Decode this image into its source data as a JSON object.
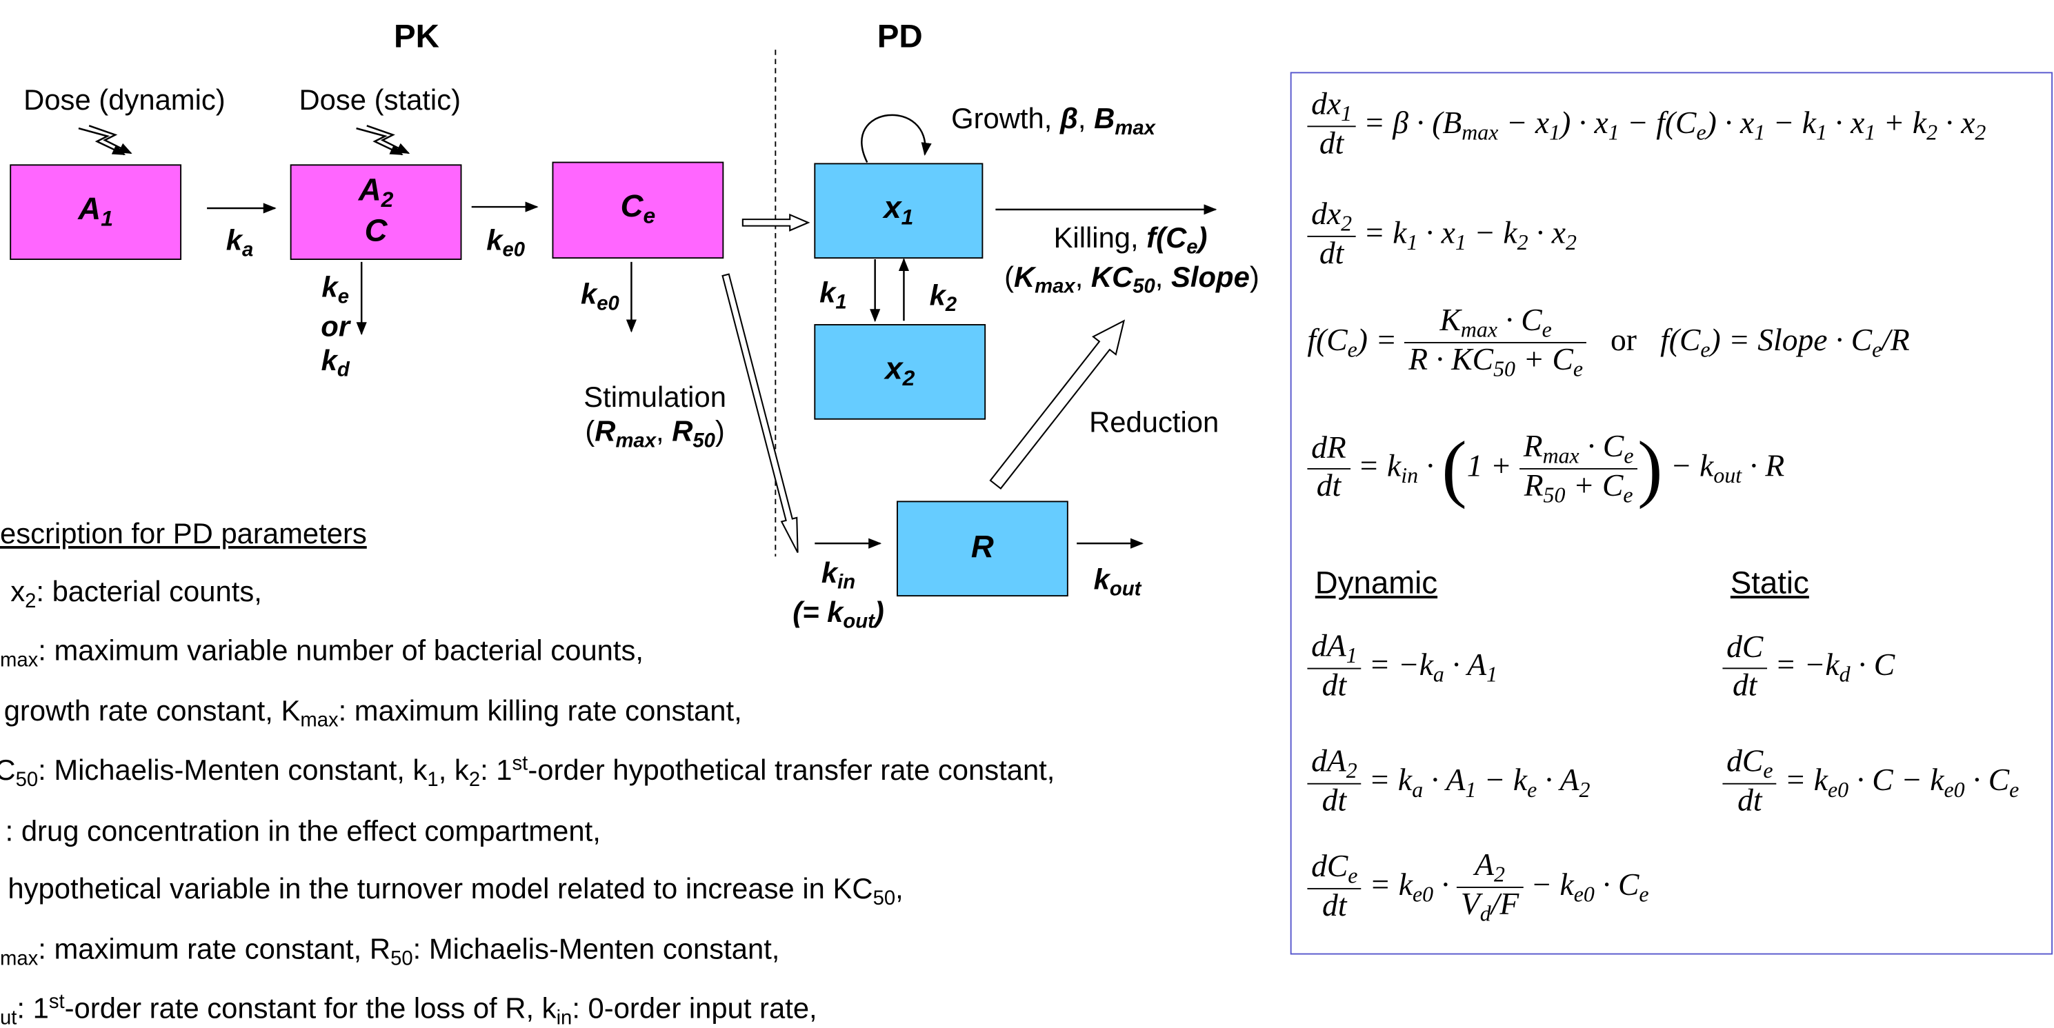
{
  "headers": {
    "pk": "PK",
    "pd": "PD"
  },
  "doses": [
    "Dose (dynamic)",
    "Dose (static)"
  ],
  "nodes": [
    {
      "lines": [
        [
          {
            "em": "A"
          },
          {
            "emsub": "1"
          }
        ]
      ]
    },
    {
      "lines": [
        [
          {
            "em": "A"
          },
          {
            "emsub": "2"
          }
        ],
        [
          {
            "em": "C"
          }
        ]
      ]
    },
    {
      "lines": [
        [
          {
            "em": "C"
          },
          {
            "emsub": "e"
          }
        ]
      ]
    },
    {
      "lines": [
        [
          {
            "em": "x"
          },
          {
            "emsub": "1"
          }
        ]
      ]
    },
    {
      "lines": [
        [
          {
            "em": "x"
          },
          {
            "emsub": "2"
          }
        ]
      ]
    },
    {
      "lines": [
        [
          {
            "em": "R"
          }
        ]
      ]
    }
  ],
  "labels": [
    {
      "lines": [
        [
          {
            "em": "k"
          },
          {
            "emsub": "a"
          }
        ]
      ]
    },
    {
      "lines": [
        [
          {
            "em": "k"
          },
          {
            "emsub": "e0"
          }
        ]
      ]
    },
    {
      "lines": [
        [
          {
            "em": "k"
          },
          {
            "emsub": "e"
          }
        ],
        [
          {
            "em": "or"
          }
        ],
        [
          {
            "em": "k"
          },
          {
            "emsub": "d"
          }
        ]
      ]
    },
    {
      "lines": [
        [
          {
            "em": "k"
          },
          {
            "emsub": "e0"
          }
        ]
      ]
    },
    {
      "lines": [
        [
          {
            "em": "k"
          },
          {
            "emsub": "1"
          }
        ]
      ]
    },
    {
      "lines": [
        [
          {
            "em": "k"
          },
          {
            "emsub": "2"
          }
        ]
      ]
    },
    {
      "lines": [
        [
          {
            "em": "k"
          },
          {
            "emsub": "in"
          }
        ],
        [
          {
            "em": "(= k"
          },
          {
            "emsub": "out"
          },
          {
            "em": ")"
          }
        ]
      ]
    },
    {
      "lines": [
        [
          {
            "em": "k"
          },
          {
            "emsub": "out"
          }
        ]
      ]
    },
    {
      "lines": [
        [
          {
            "t": "Growth, "
          },
          {
            "em": "β"
          },
          {
            "t": ", "
          },
          {
            "em": "B"
          },
          {
            "emsub": "max"
          }
        ]
      ]
    },
    {
      "lines": [
        [
          {
            "t": "Killing, "
          },
          {
            "em": "f(C"
          },
          {
            "emsub": "e"
          },
          {
            "em": ")"
          }
        ]
      ]
    },
    {
      "lines": [
        [
          {
            "t": "("
          },
          {
            "em": "K"
          },
          {
            "emsub": "max"
          },
          {
            "t": ", "
          },
          {
            "em": "KC"
          },
          {
            "emsub": "50"
          },
          {
            "t": ", "
          },
          {
            "em": "Slope"
          },
          {
            "t": ")"
          }
        ]
      ]
    },
    {
      "lines": [
        [
          {
            "t": "Stimulation"
          }
        ],
        [
          {
            "t": "("
          },
          {
            "em": "R"
          },
          {
            "emsub": "max"
          },
          {
            "t": ", "
          },
          {
            "em": "R"
          },
          {
            "emsub": "50"
          },
          {
            "t": ")"
          }
        ]
      ]
    },
    {
      "lines": [
        [
          {
            "t": "Reduction"
          }
        ]
      ]
    }
  ],
  "description": {
    "heading": "escription for PD parameters",
    "lines": [
      [
        {
          "t": "x"
        },
        {
          "sub": "2"
        },
        {
          "t": ": bacterial counts,"
        }
      ],
      [
        {
          "sub": "max"
        },
        {
          "t": ": maximum variable number of bacterial counts,"
        }
      ],
      [
        {
          "t": "growth rate constant, K"
        },
        {
          "sub": "max"
        },
        {
          "t": ": maximum killing rate constant,"
        }
      ],
      [
        {
          "t": "C"
        },
        {
          "sub": "50"
        },
        {
          "t": ": Michaelis-Menten constant, k"
        },
        {
          "sub": "1"
        },
        {
          "t": ", k"
        },
        {
          "sub": "2"
        },
        {
          "t": ": 1"
        },
        {
          "sup": "st"
        },
        {
          "t": "-order hypothetical transfer rate constant,"
        }
      ],
      [
        {
          "t": ": drug concentration in the effect compartment,"
        }
      ],
      [
        {
          "t": "hypothetical variable in the turnover model related to increase in KC"
        },
        {
          "sub": "50"
        },
        {
          "t": ","
        }
      ],
      [
        {
          "sub": "max"
        },
        {
          "t": ": maximum rate constant, R"
        },
        {
          "sub": "50"
        },
        {
          "t": ": Michaelis-Menten constant,"
        }
      ],
      [
        {
          "sub": "ut"
        },
        {
          "t": ": 1"
        },
        {
          "sup": "st"
        },
        {
          "t": "-order rate constant for the loss of R, k"
        },
        {
          "sub": "in"
        },
        {
          "t": ": 0-order input rate,"
        }
      ]
    ]
  },
  "equations": {
    "dynamic": "Dynamic",
    "static": "Static",
    "lines": [
      [
        {
          "frac": {
            "num": [
              {
                "t": "dx"
              },
              {
                "sub": "1"
              }
            ],
            "den": [
              {
                "t": "dt"
              }
            ]
          }
        },
        {
          "t": " = β · (B"
        },
        {
          "sub": "max"
        },
        {
          "t": " − x"
        },
        {
          "sub": "1"
        },
        {
          "t": ") · x"
        },
        {
          "sub": "1"
        },
        {
          "t": " − f(C"
        },
        {
          "sub": "e"
        },
        {
          "t": ") · x"
        },
        {
          "sub": "1"
        },
        {
          "t": " − k"
        },
        {
          "sub": "1"
        },
        {
          "t": " · x"
        },
        {
          "sub": "1"
        },
        {
          "t": " + k"
        },
        {
          "sub": "2"
        },
        {
          "t": " · x"
        },
        {
          "sub": "2"
        }
      ],
      [
        {
          "frac": {
            "num": [
              {
                "t": "dx"
              },
              {
                "sub": "2"
              }
            ],
            "den": [
              {
                "t": "dt"
              }
            ]
          }
        },
        {
          "t": " = k"
        },
        {
          "sub": "1"
        },
        {
          "t": " · x"
        },
        {
          "sub": "1"
        },
        {
          "t": " − k"
        },
        {
          "sub": "2"
        },
        {
          "t": " · x"
        },
        {
          "sub": "2"
        }
      ],
      [
        {
          "t": "f(C"
        },
        {
          "sub": "e"
        },
        {
          "t": ") = "
        },
        {
          "frac": {
            "num": [
              {
                "t": "K"
              },
              {
                "sub": "max"
              },
              {
                "t": " · C"
              },
              {
                "sub": "e"
              }
            ],
            "den": [
              {
                "t": "R · KC"
              },
              {
                "sub": "50"
              },
              {
                "t": " + C"
              },
              {
                "sub": "e"
              }
            ]
          }
        },
        {
          "r": "   or   "
        },
        {
          "t": "f(C"
        },
        {
          "sub": "e"
        },
        {
          "t": ") = Slope · C"
        },
        {
          "sub": "e"
        },
        {
          "t": "/R"
        }
      ],
      [
        {
          "frac": {
            "num": [
              {
                "t": "dR"
              }
            ],
            "den": [
              {
                "t": "dt"
              }
            ]
          }
        },
        {
          "t": " = k"
        },
        {
          "sub": "in"
        },
        {
          "t": " · "
        },
        {
          "big": "("
        },
        {
          "t": "1 + "
        },
        {
          "frac": {
            "num": [
              {
                "t": "R"
              },
              {
                "sub": "max"
              },
              {
                "t": " · C"
              },
              {
                "sub": "e"
              }
            ],
            "den": [
              {
                "t": "R"
              },
              {
                "sub": "50"
              },
              {
                "t": " + C"
              },
              {
                "sub": "e"
              }
            ]
          }
        },
        {
          "big": ")"
        },
        {
          "t": " − k"
        },
        {
          "sub": "out"
        },
        {
          "t": " · R"
        }
      ],
      [
        {
          "frac": {
            "num": [
              {
                "t": "dA"
              },
              {
                "sub": "1"
              }
            ],
            "den": [
              {
                "t": "dt"
              }
            ]
          }
        },
        {
          "t": " = −k"
        },
        {
          "sub": "a"
        },
        {
          "t": " · A"
        },
        {
          "sub": "1"
        }
      ],
      [
        {
          "frac": {
            "num": [
              {
                "t": "dC"
              }
            ],
            "den": [
              {
                "t": "dt"
              }
            ]
          }
        },
        {
          "t": " = −k"
        },
        {
          "sub": "d"
        },
        {
          "t": " · C"
        }
      ],
      [
        {
          "frac": {
            "num": [
              {
                "t": "dA"
              },
              {
                "sub": "2"
              }
            ],
            "den": [
              {
                "t": "dt"
              }
            ]
          }
        },
        {
          "t": " = k"
        },
        {
          "sub": "a"
        },
        {
          "t": " · A"
        },
        {
          "sub": "1"
        },
        {
          "t": " − k"
        },
        {
          "sub": "e"
        },
        {
          "t": " · A"
        },
        {
          "sub": "2"
        }
      ],
      [
        {
          "frac": {
            "num": [
              {
                "t": "dC"
              },
              {
                "sub": "e"
              }
            ],
            "den": [
              {
                "t": "dt"
              }
            ]
          }
        },
        {
          "t": " = k"
        },
        {
          "sub": "e0"
        },
        {
          "t": " · C − k"
        },
        {
          "sub": "e0"
        },
        {
          "t": " · C"
        },
        {
          "sub": "e"
        }
      ],
      [
        {
          "frac": {
            "num": [
              {
                "t": "dC"
              },
              {
                "sub": "e"
              }
            ],
            "den": [
              {
                "t": "dt"
              }
            ]
          }
        },
        {
          "t": " = k"
        },
        {
          "sub": "e0"
        },
        {
          "t": " · "
        },
        {
          "frac": {
            "num": [
              {
                "t": "A"
              },
              {
                "sub": "2"
              }
            ],
            "den": [
              {
                "t": "V"
              },
              {
                "sub": "d"
              },
              {
                "t": "/F"
              }
            ]
          }
        },
        {
          "t": " − k"
        },
        {
          "sub": "e0"
        },
        {
          "t": " · C"
        },
        {
          "sub": "e"
        }
      ]
    ]
  }
}
